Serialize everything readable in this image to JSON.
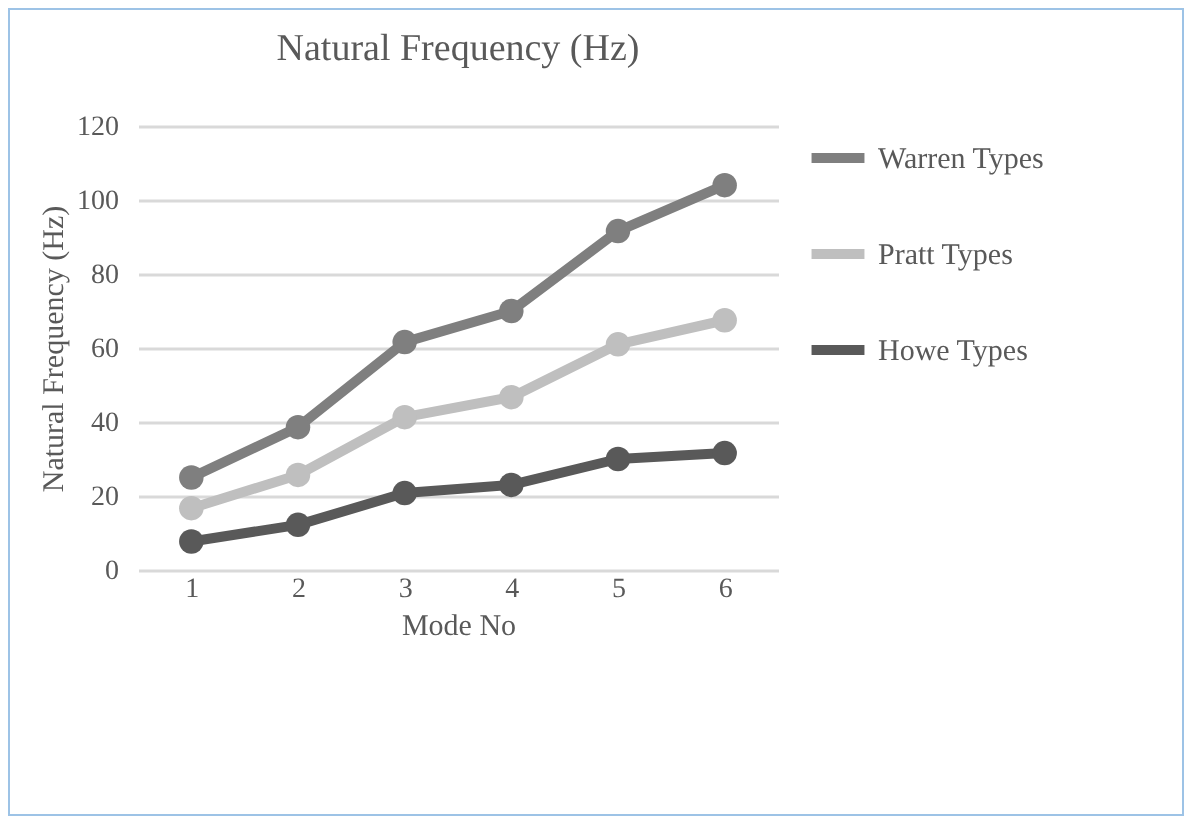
{
  "chart_data": {
    "type": "line",
    "title": "Natural Frequency (Hz)",
    "xlabel": "Mode No",
    "ylabel": "Natural Frequency (Hz)",
    "categories": [
      "1",
      "2",
      "3",
      "4",
      "5",
      "6"
    ],
    "series": [
      {
        "name": "Warren Types",
        "color": "#7f7f7f",
        "values": [
          25,
          38.6,
          61.6,
          70,
          91.6,
          104
        ]
      },
      {
        "name": "Pratt Types",
        "color": "#bfbfbf",
        "values": [
          16.7,
          25.7,
          41.3,
          46.7,
          61,
          67.5
        ]
      },
      {
        "name": "Howe Types",
        "color": "#595959",
        "values": [
          7.7,
          12.2,
          20.8,
          23,
          30,
          31.6
        ]
      }
    ],
    "ylim": [
      0,
      120
    ],
    "yticks": [
      0,
      20,
      40,
      60,
      80,
      100,
      120
    ],
    "grid": "y",
    "legend": "right",
    "marker": "circle"
  }
}
